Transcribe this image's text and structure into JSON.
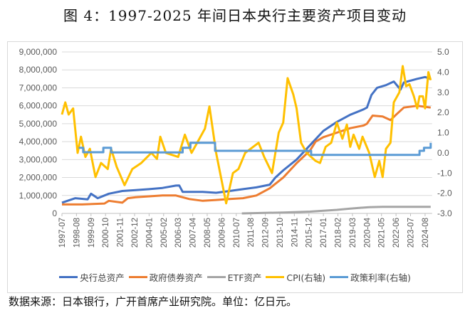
{
  "title": "图 4：1997-2025 年间日本央行主要资产项目变动",
  "footer": "数据来源：日本银行，广开首席产业研究院。单位：亿日元。",
  "chart_data": {
    "type": "line",
    "title": "图 4：1997-2025 年间日本央行主要资产项目变动",
    "x_tick_labels": [
      "1997-07",
      "1998-08",
      "1999-09",
      "2000-10",
      "2001-11",
      "2002-12",
      "2004-01",
      "2005-02",
      "2006-03",
      "2007-04",
      "2008-05",
      "2009-06",
      "2010-07",
      "2011-08",
      "2012-09",
      "2013-10",
      "2014-11",
      "2015-12",
      "2017-01",
      "2018-02",
      "2019-03",
      "2020-04",
      "2021-05",
      "2022-06",
      "2023-07",
      "2024-08"
    ],
    "x_range": [
      "1997-07",
      "2025-01"
    ],
    "y_left": {
      "min": 0,
      "max": 9000000,
      "step": 1000000,
      "tick_labels": [
        "0",
        "1,000,000",
        "2,000,000",
        "3,000,000",
        "4,000,000",
        "5,000,000",
        "6,000,000",
        "7,000,000",
        "8,000,000",
        "9,000,000"
      ]
    },
    "y_right": {
      "min": -3.0,
      "max": 5.0,
      "step": 1.0,
      "tick_labels": [
        "-3.0",
        "-2.0",
        "-1.0",
        "0.0",
        "1.0",
        "2.0",
        "3.0",
        "4.0",
        "5.0"
      ]
    },
    "grid": true,
    "legend_position": "bottom",
    "series": [
      {
        "name": "央行总资产",
        "axis": "left",
        "color": "#4472C4",
        "points": [
          [
            "1997-07",
            600000
          ],
          [
            "1998-07",
            850000
          ],
          [
            "1999-06",
            780000
          ],
          [
            "1999-09",
            1100000
          ],
          [
            "2000-03",
            850000
          ],
          [
            "2001-01",
            1100000
          ],
          [
            "2002-01",
            1250000
          ],
          [
            "2003-01",
            1300000
          ],
          [
            "2004-01",
            1350000
          ],
          [
            "2005-01",
            1420000
          ],
          [
            "2006-01",
            1550000
          ],
          [
            "2006-04",
            1560000
          ],
          [
            "2006-07",
            1200000
          ],
          [
            "2008-01",
            1200000
          ],
          [
            "2009-01",
            1150000
          ],
          [
            "2010-01",
            1250000
          ],
          [
            "2011-01",
            1350000
          ],
          [
            "2012-01",
            1450000
          ],
          [
            "2013-01",
            1600000
          ],
          [
            "2013-06",
            2000000
          ],
          [
            "2014-01",
            2400000
          ],
          [
            "2015-01",
            3000000
          ],
          [
            "2016-01",
            3800000
          ],
          [
            "2017-01",
            4600000
          ],
          [
            "2018-01",
            5100000
          ],
          [
            "2019-01",
            5500000
          ],
          [
            "2020-01",
            5800000
          ],
          [
            "2020-04",
            5900000
          ],
          [
            "2020-08",
            6600000
          ],
          [
            "2021-01",
            7000000
          ],
          [
            "2021-09",
            7150000
          ],
          [
            "2022-04",
            7350000
          ],
          [
            "2022-10",
            6900000
          ],
          [
            "2023-01",
            7300000
          ],
          [
            "2024-01",
            7500000
          ],
          [
            "2024-08",
            7600000
          ],
          [
            "2025-01",
            7500000
          ]
        ]
      },
      {
        "name": "政府债券资产",
        "axis": "left",
        "color": "#ED7D31",
        "points": [
          [
            "1997-07",
            500000
          ],
          [
            "1999-01",
            500000
          ],
          [
            "2000-09",
            550000
          ],
          [
            "2001-01",
            700000
          ],
          [
            "2002-01",
            600000
          ],
          [
            "2002-06",
            850000
          ],
          [
            "2003-01",
            900000
          ],
          [
            "2004-01",
            950000
          ],
          [
            "2005-01",
            1000000
          ],
          [
            "2006-01",
            1000000
          ],
          [
            "2006-07",
            900000
          ],
          [
            "2007-01",
            800000
          ],
          [
            "2008-01",
            700000
          ],
          [
            "2009-01",
            750000
          ],
          [
            "2010-01",
            800000
          ],
          [
            "2011-01",
            850000
          ],
          [
            "2012-01",
            1000000
          ],
          [
            "2013-01",
            1400000
          ],
          [
            "2014-01",
            2000000
          ],
          [
            "2015-01",
            2800000
          ],
          [
            "2016-01",
            3500000
          ],
          [
            "2016-06",
            4000000
          ],
          [
            "2017-01",
            4250000
          ],
          [
            "2018-01",
            4500000
          ],
          [
            "2019-01",
            4750000
          ],
          [
            "2020-01",
            4900000
          ],
          [
            "2020-04",
            5000000
          ],
          [
            "2020-09",
            5450000
          ],
          [
            "2021-06",
            5400000
          ],
          [
            "2022-01",
            5200000
          ],
          [
            "2022-06",
            5500000
          ],
          [
            "2023-01",
            5900000
          ],
          [
            "2024-01",
            6000000
          ],
          [
            "2025-01",
            5900000
          ]
        ]
      },
      {
        "name": "ETF资产",
        "axis": "left",
        "color": "#A5A5A5",
        "points": [
          [
            "2010-12",
            0
          ],
          [
            "2014-01",
            50000
          ],
          [
            "2016-01",
            100000
          ],
          [
            "2018-01",
            200000
          ],
          [
            "2019-01",
            270000
          ],
          [
            "2020-06",
            350000
          ],
          [
            "2021-06",
            370000
          ],
          [
            "2025-01",
            370000
          ]
        ]
      },
      {
        "name": "CPI(右轴)",
        "axis": "right",
        "color": "#FFC000",
        "points": [
          [
            "1997-07",
            1.9
          ],
          [
            "1997-10",
            2.5
          ],
          [
            "1998-01",
            1.9
          ],
          [
            "1998-05",
            2.2
          ],
          [
            "1998-09",
            0.0
          ],
          [
            "1998-12",
            0.8
          ],
          [
            "1999-04",
            -0.2
          ],
          [
            "1999-08",
            0.2
          ],
          [
            "2000-01",
            -1.2
          ],
          [
            "2000-06",
            -0.5
          ],
          [
            "2000-12",
            -0.8
          ],
          [
            "2001-03",
            0.2
          ],
          [
            "2001-08",
            -0.7
          ],
          [
            "2002-03",
            -1.6
          ],
          [
            "2002-10",
            -0.8
          ],
          [
            "2003-06",
            -0.5
          ],
          [
            "2004-03",
            0.0
          ],
          [
            "2004-08",
            -0.3
          ],
          [
            "2004-11",
            0.8
          ],
          [
            "2005-04",
            0.0
          ],
          [
            "2006-03",
            -0.2
          ],
          [
            "2006-09",
            0.9
          ],
          [
            "2007-03",
            0.0
          ],
          [
            "2007-10",
            0.7
          ],
          [
            "2008-03",
            1.2
          ],
          [
            "2008-07",
            2.3
          ],
          [
            "2009-01",
            0.0
          ],
          [
            "2009-10",
            -2.5
          ],
          [
            "2010-04",
            -1.0
          ],
          [
            "2010-09",
            -0.8
          ],
          [
            "2011-03",
            0.0
          ],
          [
            "2012-03",
            0.5
          ],
          [
            "2012-08",
            -0.2
          ],
          [
            "2013-03",
            -1.0
          ],
          [
            "2013-09",
            1.0
          ],
          [
            "2014-01",
            1.5
          ],
          [
            "2014-05",
            3.7
          ],
          [
            "2014-10",
            2.9
          ],
          [
            "2015-01",
            2.2
          ],
          [
            "2015-05",
            0.5
          ],
          [
            "2015-10",
            0.0
          ],
          [
            "2016-06",
            -0.4
          ],
          [
            "2016-10",
            -0.5
          ],
          [
            "2017-03",
            0.3
          ],
          [
            "2017-08",
            0.5
          ],
          [
            "2018-01",
            1.5
          ],
          [
            "2018-06",
            0.7
          ],
          [
            "2018-10",
            1.4
          ],
          [
            "2019-01",
            0.3
          ],
          [
            "2019-04",
            0.9
          ],
          [
            "2019-09",
            0.2
          ],
          [
            "2019-12",
            0.8
          ],
          [
            "2020-03",
            0.4
          ],
          [
            "2020-06",
            0.0
          ],
          [
            "2020-11",
            -1.2
          ],
          [
            "2021-03",
            -0.4
          ],
          [
            "2021-06",
            -1.2
          ],
          [
            "2021-09",
            0.2
          ],
          [
            "2022-01",
            0.5
          ],
          [
            "2022-04",
            2.5
          ],
          [
            "2022-09",
            3.0
          ],
          [
            "2022-12",
            4.3
          ],
          [
            "2023-03",
            3.3
          ],
          [
            "2023-06",
            3.4
          ],
          [
            "2023-10",
            2.8
          ],
          [
            "2024-01",
            2.2
          ],
          [
            "2024-03",
            2.8
          ],
          [
            "2024-06",
            2.8
          ],
          [
            "2024-08",
            2.2
          ],
          [
            "2024-11",
            4.0
          ],
          [
            "2025-01",
            3.6
          ]
        ]
      },
      {
        "name": "政策利率(右轴)",
        "axis": "right",
        "color": "#5B9BD5",
        "step": true,
        "points": [
          [
            "1998-10",
            0.25
          ],
          [
            "1999-02",
            0.03
          ],
          [
            "2000-08",
            0.25
          ],
          [
            "2001-03",
            0.02
          ],
          [
            "2006-07",
            0.25
          ],
          [
            "2007-02",
            0.5
          ],
          [
            "2008-12",
            0.1
          ],
          [
            "2016-02",
            -0.1
          ],
          [
            "2024-03",
            0.1
          ],
          [
            "2024-07",
            0.25
          ],
          [
            "2025-01",
            0.5
          ]
        ]
      }
    ]
  }
}
